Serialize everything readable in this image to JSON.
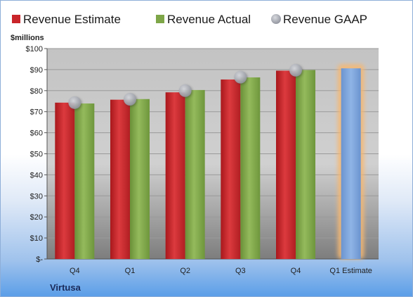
{
  "chart_data": {
    "type": "bar",
    "title": "",
    "xlabel": "",
    "ylabel": "$millions",
    "company": "Virtusa",
    "categories": [
      "Q4",
      "Q1",
      "Q2",
      "Q3",
      "Q4",
      "Q1 Estimate"
    ],
    "ylim": [
      0,
      100
    ],
    "yticks": [
      "$-",
      "$10",
      "$20",
      "$30",
      "$40",
      "$50",
      "$60",
      "$70",
      "$80",
      "$90",
      "$100"
    ],
    "legend_position": "top",
    "grid": true,
    "series": [
      {
        "name": "Revenue Estimate",
        "kind": "bar",
        "color": "#c9252a",
        "values": [
          74.3,
          75.7,
          79.2,
          85.3,
          89.5,
          null
        ]
      },
      {
        "name": "Revenue Actual",
        "kind": "bar",
        "color": "#7ea648",
        "values": [
          73.9,
          76.0,
          80.3,
          86.3,
          89.8,
          null
        ]
      },
      {
        "name": "Revenue GAAP",
        "kind": "marker",
        "color": "#a6a9b3",
        "values": [
          74.3,
          75.9,
          80.0,
          86.4,
          89.7,
          null
        ]
      },
      {
        "name": "Q1 Estimate",
        "kind": "bar",
        "color": "#7aa3d8",
        "highlight": "#f6b872",
        "values": [
          null,
          null,
          null,
          null,
          null,
          90.6
        ]
      }
    ]
  }
}
